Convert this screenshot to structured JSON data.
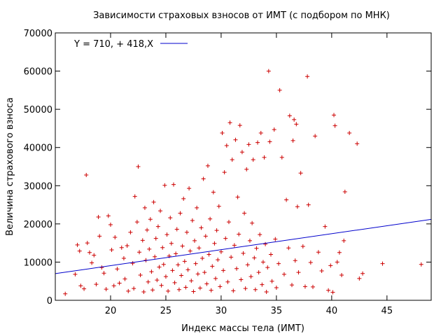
{
  "chart_data": {
    "type": "scatter",
    "title": "Зависимости страховых взносов от ИМТ (с подбором по МНК)",
    "xlabel": "Индекс массы тела (ИМТ)",
    "ylabel": "Величина страхового взноса",
    "xlim": [
      15,
      49
    ],
    "ylim": [
      0,
      70000
    ],
    "xticks": [
      20,
      25,
      30,
      35,
      40,
      45
    ],
    "yticks": [
      0,
      10000,
      20000,
      30000,
      40000,
      50000,
      60000,
      70000
    ],
    "grid": false,
    "legend_position": "top-left",
    "point_color": "#cc0000",
    "line_color": "#0000cc",
    "fit_line": {
      "label": "Y = 710, + 418,X",
      "intercept": 710,
      "slope": 418
    },
    "series": [
      {
        "name": "",
        "marker": "+",
        "points": [
          [
            15.9,
            1700
          ],
          [
            16.8,
            6800
          ],
          [
            17.0,
            14500
          ],
          [
            17.2,
            12900
          ],
          [
            17.3,
            3800
          ],
          [
            17.6,
            3000
          ],
          [
            17.8,
            32800
          ],
          [
            17.9,
            15000
          ],
          [
            18.1,
            12500
          ],
          [
            18.3,
            9800
          ],
          [
            18.5,
            11800
          ],
          [
            18.7,
            4200
          ],
          [
            18.9,
            21800
          ],
          [
            19.0,
            16800
          ],
          [
            19.2,
            8600
          ],
          [
            19.4,
            7100
          ],
          [
            19.6,
            2900
          ],
          [
            19.8,
            22100
          ],
          [
            20.0,
            19800
          ],
          [
            20.1,
            13200
          ],
          [
            20.3,
            3800
          ],
          [
            20.4,
            16500
          ],
          [
            20.6,
            8200
          ],
          [
            20.8,
            4500
          ],
          [
            21.0,
            13800
          ],
          [
            21.2,
            11000
          ],
          [
            21.3,
            5600
          ],
          [
            21.5,
            14300
          ],
          [
            21.6,
            2400
          ],
          [
            21.8,
            17800
          ],
          [
            22.0,
            9700
          ],
          [
            22.1,
            3100
          ],
          [
            22.2,
            27200
          ],
          [
            22.4,
            20500
          ],
          [
            22.5,
            35000
          ],
          [
            22.6,
            12600
          ],
          [
            22.7,
            6600
          ],
          [
            22.9,
            15700
          ],
          [
            23.0,
            2200
          ],
          [
            23.1,
            24200
          ],
          [
            23.2,
            10500
          ],
          [
            23.3,
            18400
          ],
          [
            23.4,
            4800
          ],
          [
            23.5,
            13400
          ],
          [
            23.6,
            21200
          ],
          [
            23.7,
            7500
          ],
          [
            23.8,
            2700
          ],
          [
            23.9,
            25700
          ],
          [
            24.0,
            11400
          ],
          [
            24.1,
            16200
          ],
          [
            24.2,
            5300
          ],
          [
            24.3,
            19300
          ],
          [
            24.4,
            8700
          ],
          [
            24.5,
            23400
          ],
          [
            24.6,
            3900
          ],
          [
            24.7,
            13800
          ],
          [
            24.8,
            9400
          ],
          [
            24.9,
            30100
          ],
          [
            25.0,
            6200
          ],
          [
            25.1,
            17200
          ],
          [
            25.2,
            2400
          ],
          [
            25.3,
            11600
          ],
          [
            25.4,
            21600
          ],
          [
            25.5,
            14900
          ],
          [
            25.6,
            7800
          ],
          [
            25.7,
            30300
          ],
          [
            25.8,
            4600
          ],
          [
            25.9,
            12200
          ],
          [
            26.0,
            18600
          ],
          [
            26.1,
            9300
          ],
          [
            26.2,
            2800
          ],
          [
            26.3,
            22800
          ],
          [
            26.4,
            6500
          ],
          [
            26.5,
            14200
          ],
          [
            26.6,
            26600
          ],
          [
            26.7,
            10200
          ],
          [
            26.8,
            3400
          ],
          [
            26.9,
            17800
          ],
          [
            27.0,
            8000
          ],
          [
            27.1,
            29300
          ],
          [
            27.2,
            12900
          ],
          [
            27.3,
            5100
          ],
          [
            27.4,
            20900
          ],
          [
            27.5,
            2300
          ],
          [
            27.6,
            15600
          ],
          [
            27.7,
            9600
          ],
          [
            27.8,
            24200
          ],
          [
            27.9,
            6900
          ],
          [
            28.0,
            13700
          ],
          [
            28.1,
            3200
          ],
          [
            28.2,
            19000
          ],
          [
            28.3,
            11000
          ],
          [
            28.4,
            31800
          ],
          [
            28.5,
            7300
          ],
          [
            28.6,
            16800
          ],
          [
            28.7,
            4300
          ],
          [
            28.8,
            35200
          ],
          [
            28.9,
            12000
          ],
          [
            29.0,
            21300
          ],
          [
            29.1,
            2600
          ],
          [
            29.2,
            8900
          ],
          [
            29.3,
            28300
          ],
          [
            29.4,
            14900
          ],
          [
            29.5,
            5700
          ],
          [
            29.6,
            18300
          ],
          [
            29.7,
            10600
          ],
          [
            29.8,
            24600
          ],
          [
            29.9,
            3600
          ],
          [
            30.0,
            12700
          ],
          [
            30.1,
            43800
          ],
          [
            30.2,
            7800
          ],
          [
            30.3,
            33500
          ],
          [
            30.4,
            16200
          ],
          [
            30.5,
            40500
          ],
          [
            30.6,
            4800
          ],
          [
            30.7,
            20500
          ],
          [
            30.8,
            46500
          ],
          [
            30.9,
            11300
          ],
          [
            31.0,
            36800
          ],
          [
            31.1,
            2500
          ],
          [
            31.2,
            14400
          ],
          [
            31.3,
            42000
          ],
          [
            31.4,
            8300
          ],
          [
            31.5,
            27000
          ],
          [
            31.6,
            17300
          ],
          [
            31.7,
            45800
          ],
          [
            31.8,
            5400
          ],
          [
            31.9,
            38800
          ],
          [
            32.0,
            12300
          ],
          [
            32.1,
            22800
          ],
          [
            32.2,
            3100
          ],
          [
            32.3,
            34300
          ],
          [
            32.4,
            9300
          ],
          [
            32.5,
            40800
          ],
          [
            32.6,
            15600
          ],
          [
            32.7,
            6200
          ],
          [
            32.8,
            20200
          ],
          [
            32.9,
            36800
          ],
          [
            33.0,
            11100
          ],
          [
            33.1,
            2800
          ],
          [
            33.2,
            13600
          ],
          [
            33.3,
            41300
          ],
          [
            33.4,
            7300
          ],
          [
            33.5,
            17200
          ],
          [
            33.6,
            43800
          ],
          [
            33.7,
            4100
          ],
          [
            33.8,
            10000
          ],
          [
            33.9,
            37400
          ],
          [
            34.0,
            14700
          ],
          [
            34.1,
            2200
          ],
          [
            34.2,
            8600
          ],
          [
            34.3,
            60000
          ],
          [
            34.4,
            41500
          ],
          [
            34.5,
            12000
          ],
          [
            34.6,
            5000
          ],
          [
            34.8,
            44700
          ],
          [
            34.9,
            16000
          ],
          [
            35.0,
            3300
          ],
          [
            35.2,
            9600
          ],
          [
            35.3,
            55000
          ],
          [
            35.5,
            37400
          ],
          [
            35.7,
            6800
          ],
          [
            35.9,
            26300
          ],
          [
            36.1,
            13700
          ],
          [
            36.2,
            48300
          ],
          [
            36.4,
            4000
          ],
          [
            36.5,
            41800
          ],
          [
            36.6,
            47300
          ],
          [
            36.7,
            10400
          ],
          [
            36.8,
            46100
          ],
          [
            36.9,
            24500
          ],
          [
            37.0,
            7300
          ],
          [
            37.2,
            33300
          ],
          [
            37.4,
            14100
          ],
          [
            37.6,
            3600
          ],
          [
            37.8,
            58600
          ],
          [
            37.9,
            25000
          ],
          [
            38.1,
            9900
          ],
          [
            38.3,
            3500
          ],
          [
            38.5,
            43000
          ],
          [
            38.8,
            12600
          ],
          [
            39.1,
            7700
          ],
          [
            39.4,
            19300
          ],
          [
            39.7,
            2600
          ],
          [
            39.9,
            9100
          ],
          [
            40.1,
            2100
          ],
          [
            40.2,
            48500
          ],
          [
            40.3,
            45700
          ],
          [
            40.5,
            10000
          ],
          [
            40.7,
            12500
          ],
          [
            40.9,
            6600
          ],
          [
            41.1,
            15600
          ],
          [
            41.2,
            28400
          ],
          [
            41.6,
            43800
          ],
          [
            42.3,
            41000
          ],
          [
            42.5,
            5700
          ],
          [
            42.8,
            7000
          ],
          [
            44.6,
            9600
          ],
          [
            48.1,
            9400
          ]
        ]
      }
    ]
  }
}
